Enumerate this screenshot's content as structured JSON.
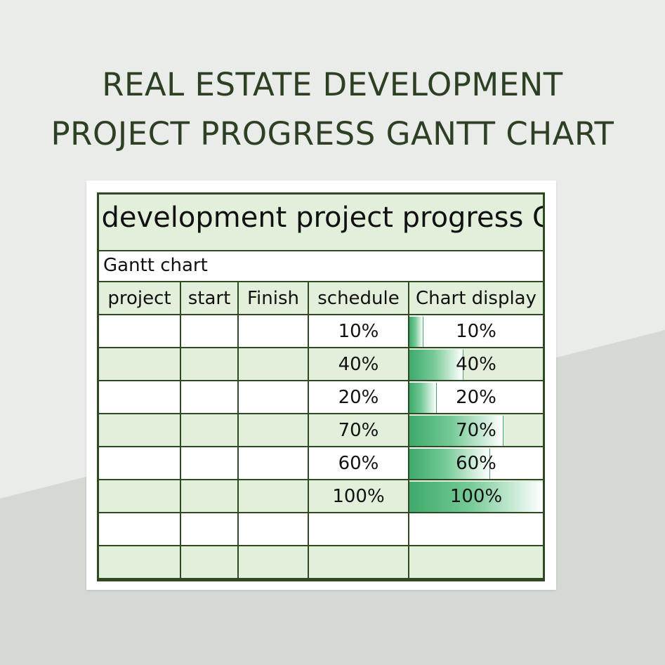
{
  "colors": {
    "background_light": "#e9ece9",
    "background_dark": "#d4d9d4",
    "title_text": "#2d4024",
    "sheet_border": "#2f4a22",
    "row_fill_green": "#e2efdb",
    "bar_green": "#3daa6a"
  },
  "page": {
    "title_line1": "REAL ESTATE DEVELOPMENT",
    "title_line2": "PROJECT PROGRESS GANTT CHART"
  },
  "sheet": {
    "heading": "e development project progress G",
    "subtitle": "Gantt chart",
    "columns": {
      "project": "project",
      "start": "start",
      "finish": "Finish",
      "schedule": "schedule",
      "chart_display": "Chart display"
    },
    "rows": [
      {
        "schedule": "10%",
        "chart_label": "10%",
        "progress": 0.1
      },
      {
        "schedule": "40%",
        "chart_label": "40%",
        "progress": 0.4
      },
      {
        "schedule": "20%",
        "chart_label": "20%",
        "progress": 0.2
      },
      {
        "schedule": "70%",
        "chart_label": "70%",
        "progress": 0.7
      },
      {
        "schedule": "60%",
        "chart_label": "60%",
        "progress": 0.6
      },
      {
        "schedule": "100%",
        "chart_label": "100%",
        "progress": 1.0
      },
      {
        "schedule": "",
        "chart_label": "",
        "progress": null
      },
      {
        "schedule": "",
        "chart_label": "",
        "progress": null
      }
    ]
  }
}
